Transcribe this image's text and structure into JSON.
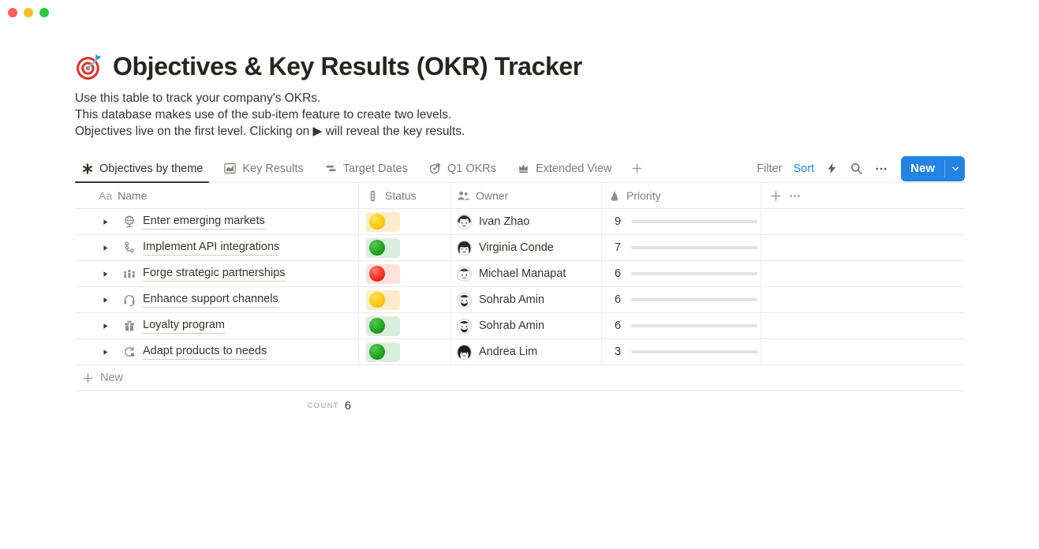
{
  "window": {
    "controls": [
      {
        "name": "close",
        "color": "#ff5f57"
      },
      {
        "name": "minimize",
        "color": "#febc2e"
      },
      {
        "name": "zoom",
        "color": "#28c840"
      }
    ]
  },
  "page": {
    "icon": "dartboard-icon",
    "title": "Objectives & Key Results (OKR) Tracker",
    "description_lines": [
      "Use this table to track your company's OKRs.",
      "This database makes use of the sub-item feature to create two levels.",
      "Objectives live on the first level. Clicking on ▶ will reveal the key results."
    ]
  },
  "toolbar": {
    "tabs": [
      {
        "label": "Objectives by theme",
        "icon": "asterisk-view-icon",
        "active": true
      },
      {
        "label": "Key Results",
        "icon": "chart-view-icon",
        "active": false
      },
      {
        "label": "Target Dates",
        "icon": "timeline-view-icon",
        "active": false
      },
      {
        "label": "Q1 OKRs",
        "icon": "target-view-icon",
        "active": false
      },
      {
        "label": "Extended View",
        "icon": "crown-view-icon",
        "active": false
      }
    ],
    "add_view_icon": "plus-icon",
    "filter_label": "Filter",
    "sort_label": "Sort",
    "action_icons": [
      "lightning-icon",
      "search-icon",
      "ellipsis-icon"
    ],
    "new_button_label": "New"
  },
  "table": {
    "columns": [
      {
        "label": "Name",
        "icon": "text-Aa-icon"
      },
      {
        "label": "Status",
        "icon": "traffic-light-icon"
      },
      {
        "label": "Owner",
        "icon": "people-icon"
      },
      {
        "label": "Priority",
        "icon": "flame-icon"
      }
    ],
    "header_extra_icons": [
      "plus-icon",
      "ellipsis-icon"
    ],
    "priority_max": 10,
    "rows": [
      {
        "name": "Enter emerging markets",
        "icon": "globe-icon",
        "status": "yellow",
        "owner": "Ivan Zhao",
        "priority": 9
      },
      {
        "name": "Implement API integrations",
        "icon": "workflow-icon",
        "status": "green",
        "owner": "Virginia Conde",
        "priority": 7
      },
      {
        "name": "Forge strategic partnerships",
        "icon": "group-icon",
        "status": "red",
        "owner": "Michael Manapat",
        "priority": 6
      },
      {
        "name": "Enhance support channels",
        "icon": "headset-icon",
        "status": "yellow",
        "owner": "Sohrab Amin",
        "priority": 6
      },
      {
        "name": "Loyalty program",
        "icon": "gift-icon",
        "status": "green",
        "owner": "Sohrab Amin",
        "priority": 6
      },
      {
        "name": "Adapt products to needs",
        "icon": "sync-icon",
        "status": "green",
        "owner": "Andrea Lim",
        "priority": 3
      }
    ],
    "new_row_label": "New",
    "count_label": "COUNT",
    "count_value": "6"
  },
  "colors": {
    "accent_blue": "#2383e2",
    "progress_green": "#548164",
    "status_yellow_bg": "#fdecc8",
    "status_green_bg": "#dbeddb",
    "status_red_bg": "#ffe2dd",
    "status_yellow": "#fdc500",
    "status_green": "#1ba01b",
    "status_red": "#ee2c1f",
    "border": "#e9e9e7",
    "text_dark": "#37352f",
    "text_gray": "#7d7c78"
  }
}
